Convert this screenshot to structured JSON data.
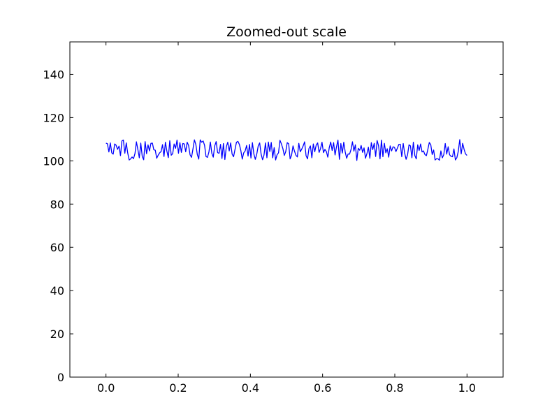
{
  "chart_data": {
    "type": "line",
    "title": "Zoomed-out scale",
    "xlabel": "",
    "ylabel": "",
    "xlim": [
      -0.1,
      1.1
    ],
    "ylim": [
      0,
      155
    ],
    "x_ticks": [
      0.0,
      0.2,
      0.4,
      0.6,
      0.8,
      1.0
    ],
    "x_tick_labels": [
      "0.0",
      "0.2",
      "0.4",
      "0.6",
      "0.8",
      "1.0"
    ],
    "y_ticks": [
      0,
      20,
      40,
      60,
      80,
      100,
      120,
      140
    ],
    "y_tick_labels": [
      "0",
      "20",
      "40",
      "60",
      "80",
      "100",
      "120",
      "140"
    ],
    "grid": false,
    "series": [
      {
        "color": "#0000ff",
        "x_start": 0.0,
        "x_end": 1.0,
        "values": [
          108.2,
          107.9,
          104.1,
          108.3,
          103.7,
          103.1,
          107.8,
          107.2,
          105.3,
          106.8,
          102.4,
          109.2,
          109.6,
          103.5,
          108.3,
          103.6,
          100.4,
          100.9,
          101.8,
          101.0,
          103.4,
          108.8,
          105.2,
          101.4,
          108.2,
          102.1,
          100.5,
          108.9,
          103.3,
          107.4,
          104.6,
          108.1,
          108.2,
          105.1,
          104.9,
          101.2,
          102.6,
          103.7,
          104.3,
          107.5,
          102.0,
          108.6,
          104.5,
          101.5,
          109.3,
          102.6,
          103.3,
          107.8,
          105.8,
          109.6,
          103.5,
          108.4,
          103.9,
          108.0,
          107.8,
          104.2,
          108.6,
          107.1,
          102.8,
          101.6,
          105.5,
          109.7,
          107.5,
          102.9,
          100.8,
          109.7,
          108.6,
          109.2,
          107.2,
          102.0,
          101.6,
          104.1,
          108.7,
          103.5,
          101.7,
          106.9,
          108.9,
          103.8,
          103.5,
          107.6,
          101.1,
          108.0,
          100.6,
          106.5,
          108.6,
          104.6,
          108.3,
          103.1,
          101.9,
          105.3,
          108.6,
          109.0,
          107.6,
          104.8,
          100.8,
          103.7,
          104.6,
          107.1,
          102.2,
          107.6,
          101.3,
          108.4,
          103.2,
          100.7,
          103.1,
          106.9,
          108.3,
          103.1,
          100.5,
          102.7,
          108.3,
          101.4,
          108.7,
          104.3,
          108.5,
          101.4,
          106.1,
          100.4,
          102.8,
          103.7,
          109.5,
          107.8,
          105.7,
          102.5,
          104.3,
          108.4,
          107.9,
          100.9,
          102.6,
          106.9,
          104.5,
          102.6,
          101.8,
          108.1,
          104.2,
          105.4,
          106.9,
          108.8,
          102.4,
          100.9,
          105.7,
          106.9,
          101.4,
          107.8,
          104.2,
          107.3,
          108.3,
          103.9,
          105.7,
          108.6,
          103.8,
          105.3,
          104.3,
          101.7,
          106.1,
          108.7,
          104.8,
          108.4,
          102.7,
          106.5,
          109.6,
          100.7,
          108.0,
          103.6,
          108.6,
          104.1,
          101.2,
          103.2,
          103.1,
          105.2,
          108.8,
          104.5,
          107.4,
          100.2,
          105.8,
          104.9,
          107.1,
          103.9,
          106.0,
          101.2,
          103.4,
          106.3,
          101.2,
          108.4,
          105.2,
          108.1,
          102.0,
          109.4,
          107.0,
          100.9,
          109.6,
          101.9,
          108.1,
          103.7,
          105.6,
          101.7,
          106.9,
          104.6,
          106.5,
          106.2,
          104.3,
          105.9,
          107.6,
          107.7,
          101.9,
          108.0,
          103.6,
          100.7,
          102.8,
          107.4,
          106.9,
          101.4,
          108.6,
          102.5,
          100.9,
          107.4,
          104.8,
          107.8,
          104.1,
          104.6,
          102.9,
          102.4,
          105.3,
          108.5,
          107.5,
          102.9,
          105.0,
          100.4,
          101.0,
          100.9,
          100.3,
          104.6,
          101.4,
          102.9,
          108.0,
          103.1,
          106.5,
          102.8,
          102.1,
          101.9,
          105.5,
          100.4,
          101.5,
          104.4,
          109.8,
          103.2,
          108.1,
          105.3,
          103.2,
          102.5
        ]
      }
    ]
  }
}
